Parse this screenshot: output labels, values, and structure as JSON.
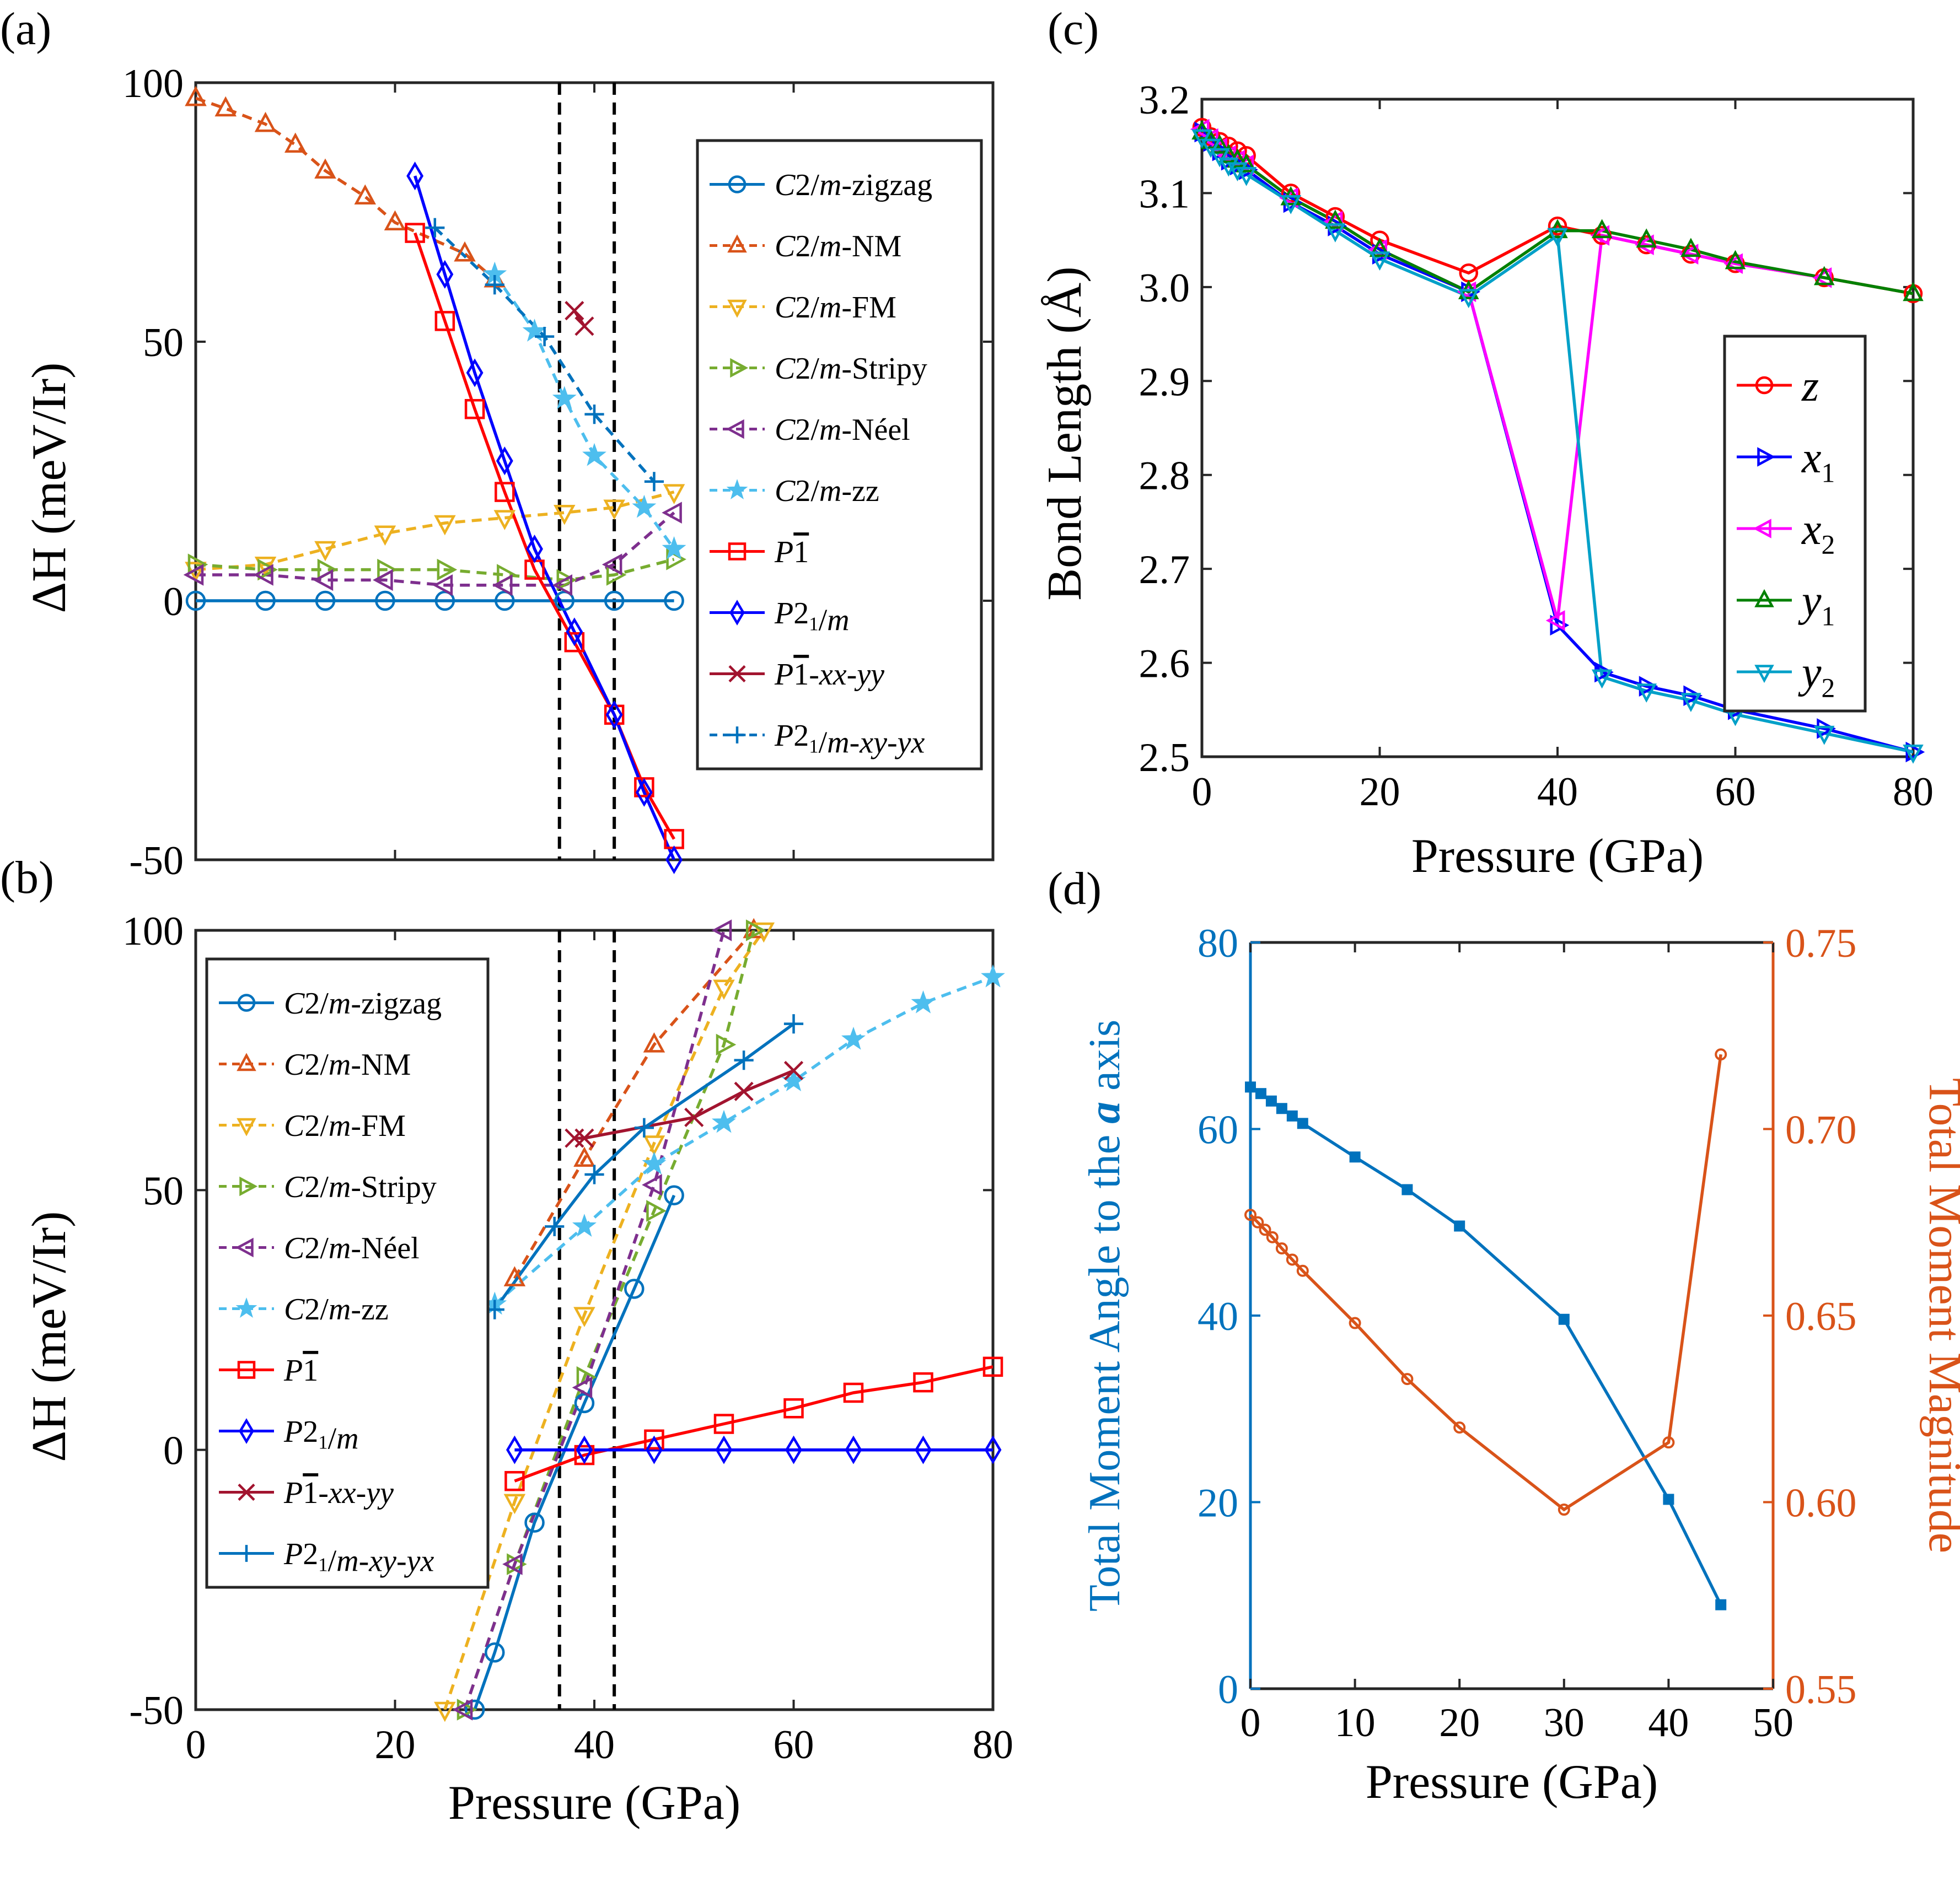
{
  "figure": {
    "legend_ab": [
      "C2/m-zigzag",
      "C2/m-NM",
      "C2/m-FM",
      "C2/m-Stripy",
      "C2/m-Néel",
      "C2/m-zz",
      "P-1",
      "P2_1/m",
      "P-1-xx-yy",
      "P2_1/m-xy-yx"
    ],
    "legend_c": [
      "z",
      "x1",
      "x2",
      "y1",
      "y2"
    ]
  },
  "chart_data": [
    {
      "id": "a",
      "panel_label": "(a)",
      "type": "line",
      "xlabel": "",
      "ylabel": "ΔH (meV/Ir)",
      "xlim": [
        0,
        80
      ],
      "ylim": [
        -50,
        100
      ],
      "xticks": [],
      "yticks": [
        -50,
        0,
        50,
        100
      ],
      "vlines": [
        36.5,
        42
      ],
      "legend_position": "right",
      "series": [
        {
          "name": "C2/m-zigzag",
          "color": "#0072BD",
          "marker": "circle",
          "dash": false,
          "x": [
            0,
            7,
            13,
            19,
            25,
            31,
            37,
            42,
            48
          ],
          "y": [
            0,
            0,
            0,
            0,
            0,
            0,
            0,
            0,
            0
          ]
        },
        {
          "name": "C2/m-NM",
          "color": "#D95319",
          "marker": "triangle-up",
          "dash": true,
          "x": [
            0,
            3,
            7,
            10,
            13,
            17,
            20,
            27,
            30
          ],
          "y": [
            97,
            95,
            92,
            88,
            83,
            78,
            73,
            67,
            62
          ]
        },
        {
          "name": "C2/m-FM",
          "color": "#EDB120",
          "marker": "triangle-down",
          "dash": true,
          "x": [
            0,
            7,
            13,
            19,
            25,
            31,
            37,
            42,
            48
          ],
          "y": [
            6,
            7,
            10,
            13,
            15,
            16,
            17,
            18,
            21
          ]
        },
        {
          "name": "C2/m-Stripy",
          "color": "#77AC30",
          "marker": "triangle-right",
          "dash": true,
          "x": [
            0,
            7,
            13,
            19,
            25,
            31,
            37,
            42,
            48
          ],
          "y": [
            7,
            6,
            6,
            6,
            6,
            5,
            4,
            5,
            8
          ]
        },
        {
          "name": "C2/m-Néel",
          "color": "#7E2F8E",
          "marker": "triangle-left",
          "dash": true,
          "x": [
            0,
            7,
            13,
            19,
            25,
            31,
            37,
            42,
            48
          ],
          "y": [
            5,
            5,
            4,
            4,
            3,
            3,
            3,
            7,
            17
          ]
        },
        {
          "name": "C2/m-zz",
          "color": "#4DBEEE",
          "marker": "star",
          "dash": true,
          "x": [
            30,
            34,
            37,
            40,
            45,
            48
          ],
          "y": [
            63,
            52,
            39,
            28,
            18,
            10
          ]
        },
        {
          "name": "P-1",
          "color": "#FF0000",
          "marker": "square",
          "dash": false,
          "x": [
            22,
            25,
            28,
            31,
            34,
            38,
            42,
            45,
            48
          ],
          "y": [
            71,
            54,
            37,
            21,
            6,
            -8,
            -22,
            -36,
            -46
          ]
        },
        {
          "name": "P2_1/m",
          "color": "#0000FF",
          "marker": "diamond",
          "dash": false,
          "x": [
            22,
            25,
            28,
            31,
            34,
            38,
            42,
            45,
            48
          ],
          "y": [
            82,
            63,
            44,
            27,
            10,
            -6,
            -22,
            -37,
            -50
          ]
        },
        {
          "name": "P-1-xx-yy",
          "color": "#A2142F",
          "marker": "x",
          "dash": false,
          "x": [
            38,
            39
          ],
          "y": [
            56,
            53
          ]
        },
        {
          "name": "P2_1/m-xy-yx",
          "color": "#0072BD",
          "marker": "plus",
          "dash": true,
          "x": [
            24,
            30,
            35,
            40,
            46
          ],
          "y": [
            72,
            61,
            51,
            36,
            23
          ]
        }
      ]
    },
    {
      "id": "b",
      "panel_label": "(b)",
      "type": "line",
      "xlabel": "Pressure (GPa)",
      "ylabel": "ΔH (meV/Ir)",
      "xlim": [
        0,
        80
      ],
      "ylim": [
        -50,
        100
      ],
      "xticks": [
        0,
        20,
        40,
        60,
        80
      ],
      "yticks": [
        -50,
        0,
        50,
        100
      ],
      "vlines": [
        36.5,
        42
      ],
      "legend_position": "left",
      "series": [
        {
          "name": "C2/m-zigzag",
          "color": "#0072BD",
          "marker": "circle",
          "dash": false,
          "x": [
            28,
            30,
            34,
            39,
            44,
            48
          ],
          "y": [
            -50,
            -39,
            -14,
            9,
            31,
            49
          ]
        },
        {
          "name": "C2/m-NM",
          "color": "#D95319",
          "marker": "triangle-up",
          "dash": true,
          "x": [
            32,
            39,
            46,
            56
          ],
          "y": [
            33,
            56,
            78,
            100
          ]
        },
        {
          "name": "C2/m-FM",
          "color": "#EDB120",
          "marker": "triangle-down",
          "dash": true,
          "x": [
            25,
            32,
            39,
            46,
            53,
            57
          ],
          "y": [
            -50,
            -10,
            26,
            59,
            89,
            100
          ]
        },
        {
          "name": "C2/m-Stripy",
          "color": "#77AC30",
          "marker": "triangle-right",
          "dash": true,
          "x": [
            27,
            32,
            39,
            46,
            53,
            56
          ],
          "y": [
            -50,
            -22,
            14,
            46,
            78,
            100
          ]
        },
        {
          "name": "C2/m-Néel",
          "color": "#7E2F8E",
          "marker": "triangle-left",
          "dash": true,
          "x": [
            27,
            32,
            39,
            46,
            53
          ],
          "y": [
            -50,
            -22,
            12,
            51,
            100
          ]
        },
        {
          "name": "C2/m-zz",
          "color": "#4DBEEE",
          "marker": "star",
          "dash": true,
          "x": [
            30,
            39,
            46,
            53,
            60,
            66,
            73,
            80
          ],
          "y": [
            28,
            43,
            55,
            63,
            71,
            79,
            86,
            91
          ]
        },
        {
          "name": "P-1",
          "color": "#FF0000",
          "marker": "square",
          "dash": false,
          "x": [
            32,
            39,
            46,
            53,
            60,
            66,
            73,
            80
          ],
          "y": [
            -6,
            -1,
            2,
            5,
            8,
            11,
            13,
            16
          ]
        },
        {
          "name": "P2_1/m",
          "color": "#0000FF",
          "marker": "diamond",
          "dash": false,
          "x": [
            32,
            39,
            46,
            53,
            60,
            66,
            73,
            80
          ],
          "y": [
            0,
            0,
            0,
            0,
            0,
            0,
            0,
            0
          ]
        },
        {
          "name": "P-1-xx-yy",
          "color": "#A2142F",
          "marker": "x",
          "dash": false,
          "x": [
            38,
            39,
            50,
            55,
            60
          ],
          "y": [
            60,
            60,
            64,
            69,
            73
          ]
        },
        {
          "name": "P2_1/m-xy-yx",
          "color": "#0072BD",
          "marker": "plus",
          "dash": false,
          "x": [
            30,
            36,
            40,
            45,
            55,
            60
          ],
          "y": [
            27,
            43,
            53,
            62,
            75,
            82
          ]
        }
      ]
    },
    {
      "id": "c",
      "panel_label": "(c)",
      "type": "line",
      "xlabel": "Pressure (GPa)",
      "ylabel": "Bond Length (Å)",
      "xlim": [
        0,
        80
      ],
      "ylim": [
        2.5,
        3.2
      ],
      "xticks": [
        0,
        20,
        40,
        60,
        80
      ],
      "yticks": [
        2.5,
        2.6,
        2.7,
        2.8,
        2.9,
        3.0,
        3.1,
        3.2
      ],
      "legend_position": "right",
      "series": [
        {
          "name": "z",
          "color": "#FF0000",
          "marker": "circle",
          "x": [
            0,
            1,
            2,
            3,
            4,
            5,
            10,
            15,
            20,
            30,
            40,
            45,
            50,
            55,
            60,
            70,
            80
          ],
          "y": [
            3.17,
            3.16,
            3.155,
            3.15,
            3.145,
            3.14,
            3.1,
            3.075,
            3.05,
            3.015,
            3.065,
            3.055,
            3.045,
            3.035,
            3.025,
            3.01,
            2.993
          ]
        },
        {
          "name": "x1",
          "color": "#0000FF",
          "marker": "triangle-right",
          "x": [
            0,
            1,
            2,
            3,
            4,
            5,
            10,
            15,
            20,
            30,
            40,
            45,
            50,
            55,
            60,
            70,
            80
          ],
          "y": [
            3.165,
            3.155,
            3.145,
            3.135,
            3.13,
            3.125,
            3.09,
            3.065,
            3.035,
            2.995,
            2.64,
            2.59,
            2.575,
            2.565,
            2.55,
            2.53,
            2.505
          ]
        },
        {
          "name": "x2",
          "color": "#FF00FF",
          "marker": "triangle-left",
          "x": [
            0,
            1,
            2,
            3,
            4,
            5,
            10,
            15,
            20,
            30,
            40,
            45,
            50,
            55,
            60,
            70
          ],
          "y": [
            3.168,
            3.158,
            3.148,
            3.14,
            3.135,
            3.13,
            3.095,
            3.07,
            3.04,
            2.995,
            2.645,
            3.055,
            3.045,
            3.035,
            3.025,
            3.01
          ]
        },
        {
          "name": "y1",
          "color": "#008000",
          "marker": "triangle-up",
          "x": [
            0,
            1,
            2,
            3,
            4,
            5,
            10,
            15,
            20,
            30,
            40,
            45,
            50,
            55,
            60,
            70,
            80
          ],
          "y": [
            3.165,
            3.155,
            3.15,
            3.14,
            3.135,
            3.13,
            3.095,
            3.07,
            3.04,
            2.995,
            3.06,
            3.06,
            3.05,
            3.04,
            3.027,
            3.01,
            2.993
          ]
        },
        {
          "name": "y2",
          "color": "#00A0C8",
          "marker": "triangle-down",
          "x": [
            0,
            1,
            2,
            3,
            4,
            5,
            10,
            15,
            20,
            30,
            40,
            45,
            50,
            55,
            60,
            70,
            80
          ],
          "y": [
            3.16,
            3.15,
            3.14,
            3.13,
            3.125,
            3.12,
            3.09,
            3.06,
            3.03,
            2.99,
            3.055,
            2.585,
            2.57,
            2.56,
            2.545,
            2.525,
            2.505
          ]
        }
      ]
    },
    {
      "id": "d",
      "panel_label": "(d)",
      "type": "line",
      "xlabel": "Pressure (GPa)",
      "ylabel": "Total Moment Angle to the a axis",
      "ylabel_right": "Total Moment Magnitude",
      "xlim": [
        0,
        50
      ],
      "ylim": [
        0,
        80
      ],
      "ylim_right": [
        0.55,
        0.75
      ],
      "xticks": [
        0,
        10,
        20,
        30,
        40,
        50
      ],
      "yticks": [
        0,
        20,
        40,
        60,
        80
      ],
      "yticks_right": [
        "0.55",
        "0.60",
        "0.65",
        "0.70",
        "0.75"
      ],
      "series": [
        {
          "name": "Total Moment Angle",
          "axis": "left",
          "color": "#0072BD",
          "marker": "square",
          "x": [
            0,
            1,
            2,
            3,
            4,
            5,
            10,
            15,
            20,
            30,
            40,
            45
          ],
          "y": [
            64.5,
            63.8,
            63,
            62.2,
            61.4,
            60.6,
            57,
            53.5,
            49.6,
            39.6,
            20.3,
            9
          ]
        },
        {
          "name": "Total Moment Magnitude",
          "axis": "right",
          "color": "#D95319",
          "marker": "circle",
          "x": [
            0,
            0.7,
            1.4,
            2.1,
            3,
            4,
            5,
            10,
            15,
            20,
            30,
            40,
            45
          ],
          "y": [
            0.677,
            0.675,
            0.673,
            0.671,
            0.668,
            0.665,
            0.662,
            0.648,
            0.633,
            0.62,
            0.598,
            0.616,
            0.72
          ]
        }
      ]
    }
  ]
}
